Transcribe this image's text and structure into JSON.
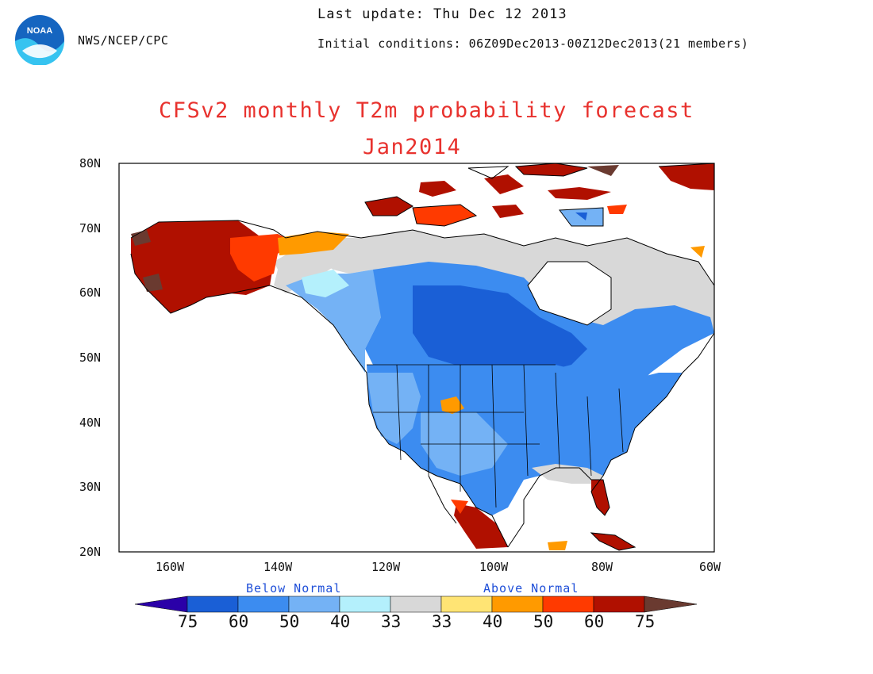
{
  "header": {
    "agency": "NWS/NCEP/CPC",
    "last_update": "Last update: Thu Dec 12 2013",
    "initial_conditions": "Initial conditions: 06Z09Dec2013-00Z12Dec2013(21 members)",
    "logo_text": "NOAA"
  },
  "title": {
    "line1": "CFSv2 monthly T2m probability forecast",
    "line2": "Jan2014"
  },
  "map": {
    "lat_ticks": [
      "80N",
      "70N",
      "60N",
      "50N",
      "40N",
      "30N",
      "20N"
    ],
    "lon_ticks": [
      "160W",
      "140W",
      "120W",
      "100W",
      "80W",
      "60W"
    ],
    "lon_range": [
      -170,
      -60
    ],
    "lat_range": [
      20,
      80
    ],
    "land_color": "#ffffff",
    "outline_color": "#000000"
  },
  "legend": {
    "below_label": "Below Normal",
    "above_label": "Above Normal",
    "numbers": [
      "75",
      "60",
      "50",
      "40",
      "33",
      "33",
      "40",
      "50",
      "60",
      "75"
    ],
    "colors": [
      "#2a00a8",
      "#1a5fd6",
      "#3c8cf0",
      "#74b2f5",
      "#b4f0fc",
      "#d8d8d8",
      "#ffe474",
      "#ff9a00",
      "#ff3a00",
      "#b01000",
      "#6a3a30"
    ]
  }
}
